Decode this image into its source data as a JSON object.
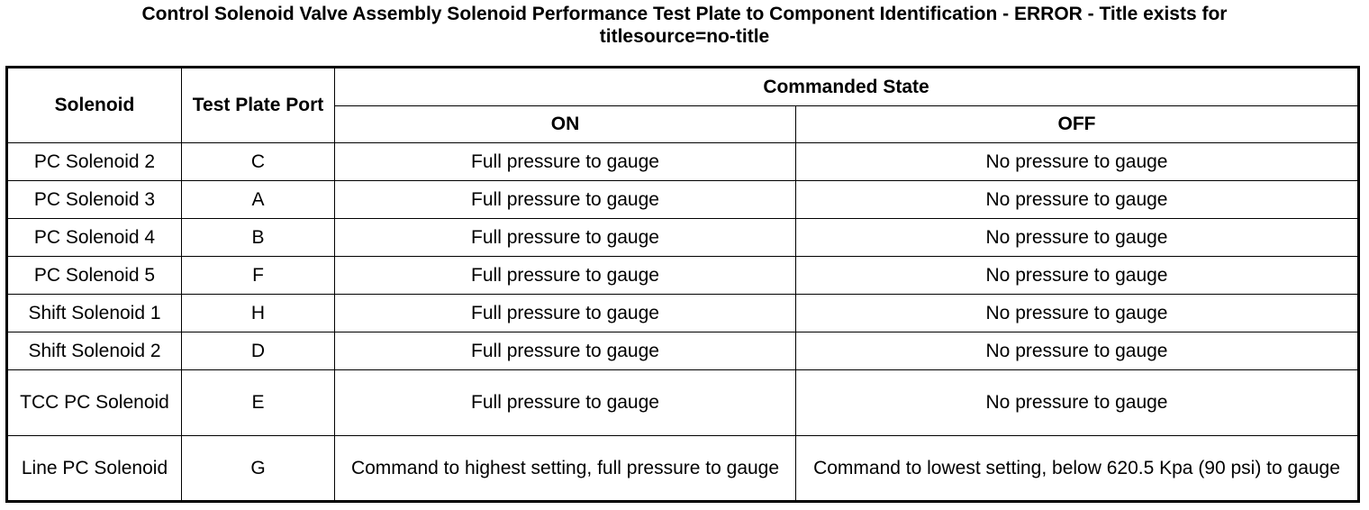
{
  "document": {
    "title_line1": "Control Solenoid Valve Assembly Solenoid Performance Test Plate to Component Identification - ERROR - Title exists for",
    "title_line2": "titlesource=no-title"
  },
  "table": {
    "headers": {
      "solenoid": "Solenoid",
      "port": "Test Plate Port",
      "commanded_state": "Commanded State",
      "on": "ON",
      "off": "OFF"
    },
    "rows": [
      {
        "solenoid": "PC Solenoid 2",
        "port": "C",
        "on": "Full pressure to gauge",
        "off": "No pressure to gauge"
      },
      {
        "solenoid": "PC Solenoid 3",
        "port": "A",
        "on": "Full pressure to gauge",
        "off": "No pressure to gauge"
      },
      {
        "solenoid": "PC Solenoid 4",
        "port": "B",
        "on": "Full pressure to gauge",
        "off": "No pressure to gauge"
      },
      {
        "solenoid": "PC Solenoid 5",
        "port": "F",
        "on": "Full pressure to gauge",
        "off": "No pressure to gauge"
      },
      {
        "solenoid": "Shift Solenoid 1",
        "port": "H",
        "on": "Full pressure to gauge",
        "off": "No pressure to gauge"
      },
      {
        "solenoid": "Shift Solenoid 2",
        "port": "D",
        "on": "Full pressure to gauge",
        "off": "No pressure to gauge"
      },
      {
        "solenoid": "TCC PC Solenoid",
        "port": "E",
        "on": "Full pressure to gauge",
        "off": "No pressure to gauge"
      },
      {
        "solenoid": "Line PC Solenoid",
        "port": "G",
        "on": "Command to highest setting, full pressure to gauge",
        "off": "Command to lowest setting, below 620.5 Kpa (90 psi) to gauge"
      }
    ]
  }
}
